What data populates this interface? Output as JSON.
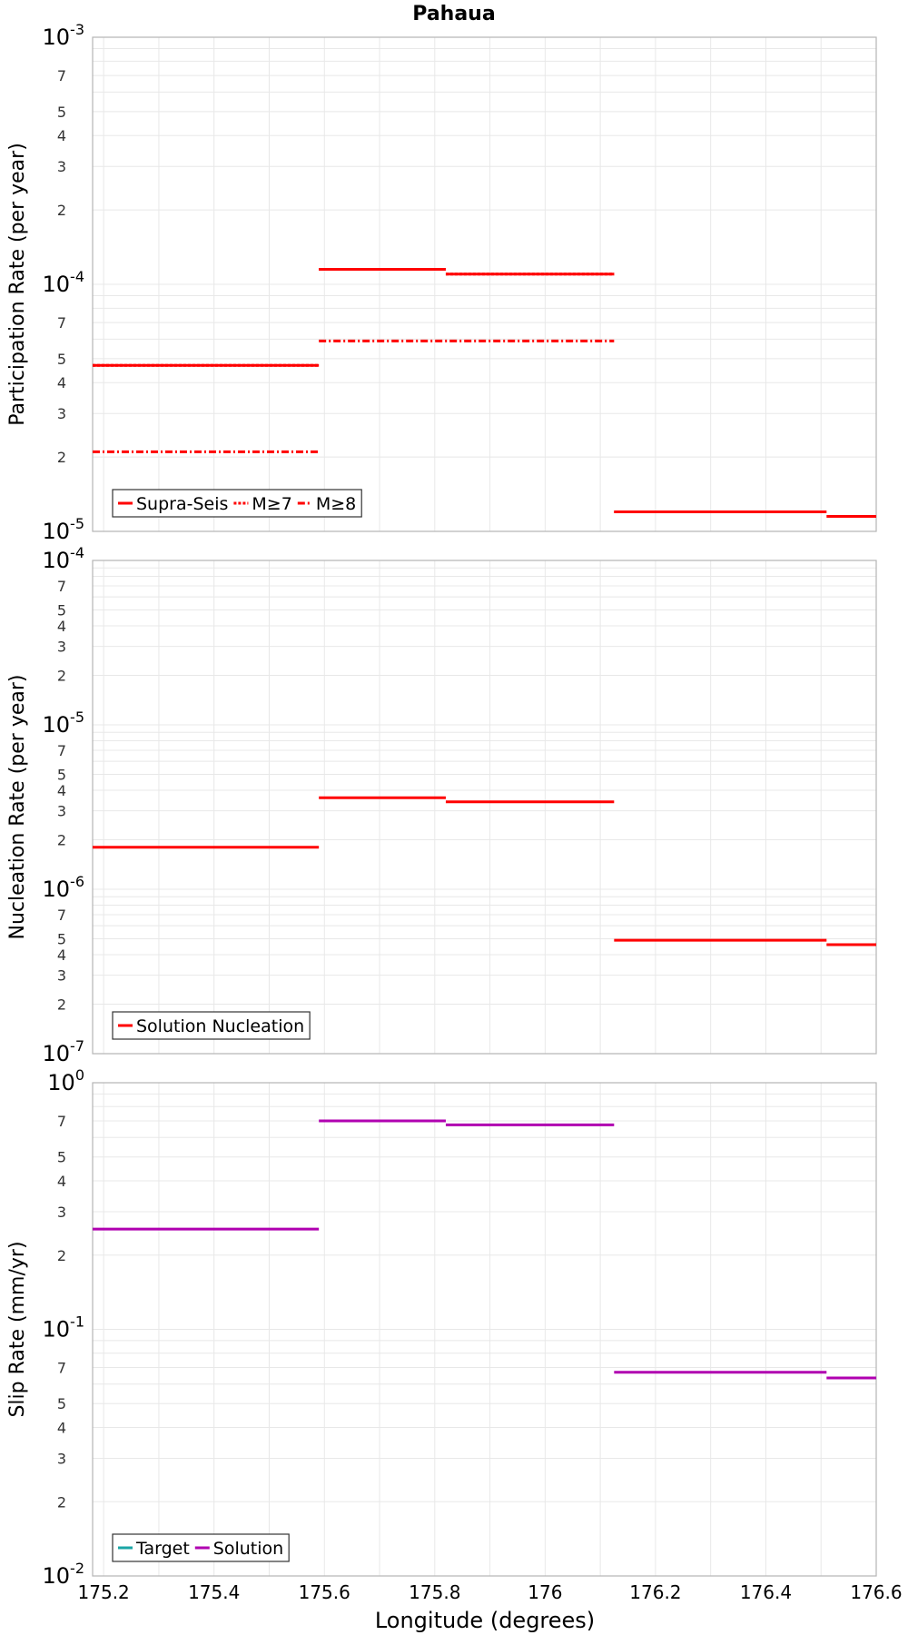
{
  "figure": {
    "title": "Pahaua",
    "xlabel": "Longitude (degrees)"
  },
  "chart_data": [
    {
      "type": "line",
      "title": "Pahaua",
      "xlabel": "Longitude (degrees)",
      "ylabel": "Participation Rate (per year)",
      "yscale": "log",
      "xlim": [
        175.18,
        176.6
      ],
      "ylim": [
        1e-05,
        0.001
      ],
      "x_ticks": [
        "175.2",
        "175.4",
        "175.6",
        "175.8",
        "176",
        "176.2",
        "176.4",
        "176.6"
      ],
      "grid": true,
      "legend_position": "bottom-left",
      "series": [
        {
          "name": "Supra-Seis",
          "color": "#ff0000",
          "style": "solid",
          "segments": [
            {
              "x": [
                175.18,
                175.59
              ],
              "y": 4.7e-05
            },
            {
              "x": [
                175.59,
                175.82
              ],
              "y": 0.000115
            },
            {
              "x": [
                175.82,
                176.125
              ],
              "y": 0.00011
            },
            {
              "x": [
                176.125,
                176.51
              ],
              "y": 1.2e-05
            },
            {
              "x": [
                176.51,
                176.6
              ],
              "y": 1.15e-05
            }
          ]
        },
        {
          "name": "M≥7",
          "color": "#ff0000",
          "style": "dotted",
          "segments": [
            {
              "x": [
                175.18,
                175.59
              ],
              "y": 4.7e-05
            },
            {
              "x": [
                175.59,
                175.82
              ],
              "y": 0.000115
            },
            {
              "x": [
                175.82,
                176.125
              ],
              "y": 0.00011
            },
            {
              "x": [
                176.125,
                176.51
              ],
              "y": 1.2e-05
            }
          ]
        },
        {
          "name": "M≥8",
          "color": "#ff0000",
          "style": "dashdot",
          "segments": [
            {
              "x": [
                175.18,
                175.59
              ],
              "y": 2.1e-05
            },
            {
              "x": [
                175.59,
                176.125
              ],
              "y": 5.9e-05
            }
          ]
        }
      ]
    },
    {
      "type": "line",
      "xlabel": "",
      "ylabel": "Nucleation Rate (per year)",
      "yscale": "log",
      "xlim": [
        175.18,
        176.6
      ],
      "ylim": [
        1e-07,
        0.0001
      ],
      "grid": true,
      "legend_position": "bottom-left",
      "series": [
        {
          "name": "Solution Nucleation",
          "color": "#ff0000",
          "style": "solid",
          "segments": [
            {
              "x": [
                175.18,
                175.59
              ],
              "y": 1.8e-06
            },
            {
              "x": [
                175.59,
                175.82
              ],
              "y": 3.6e-06
            },
            {
              "x": [
                175.82,
                176.125
              ],
              "y": 3.4e-06
            },
            {
              "x": [
                176.125,
                176.51
              ],
              "y": 4.9e-07
            },
            {
              "x": [
                176.51,
                176.6
              ],
              "y": 4.6e-07
            }
          ]
        }
      ]
    },
    {
      "type": "line",
      "xlabel": "Longitude (degrees)",
      "ylabel": "Slip Rate (mm/yr)",
      "yscale": "log",
      "xlim": [
        175.18,
        176.6
      ],
      "ylim": [
        0.01,
        1
      ],
      "x_ticks": [
        "175.2",
        "175.4",
        "175.6",
        "175.8",
        "176",
        "176.2",
        "176.4",
        "176.6"
      ],
      "grid": true,
      "legend_position": "bottom-left",
      "series": [
        {
          "name": "Target",
          "color": "#1aa5a5",
          "style": "solid",
          "segments": []
        },
        {
          "name": "Solution",
          "color": "#b000b0",
          "style": "solid",
          "segments": [
            {
              "x": [
                175.18,
                175.59
              ],
              "y": 0.255
            },
            {
              "x": [
                175.59,
                175.82
              ],
              "y": 0.7
            },
            {
              "x": [
                175.82,
                176.125
              ],
              "y": 0.675
            },
            {
              "x": [
                176.125,
                176.51
              ],
              "y": 0.067
            },
            {
              "x": [
                176.51,
                176.6
              ],
              "y": 0.0635
            }
          ]
        }
      ]
    }
  ]
}
